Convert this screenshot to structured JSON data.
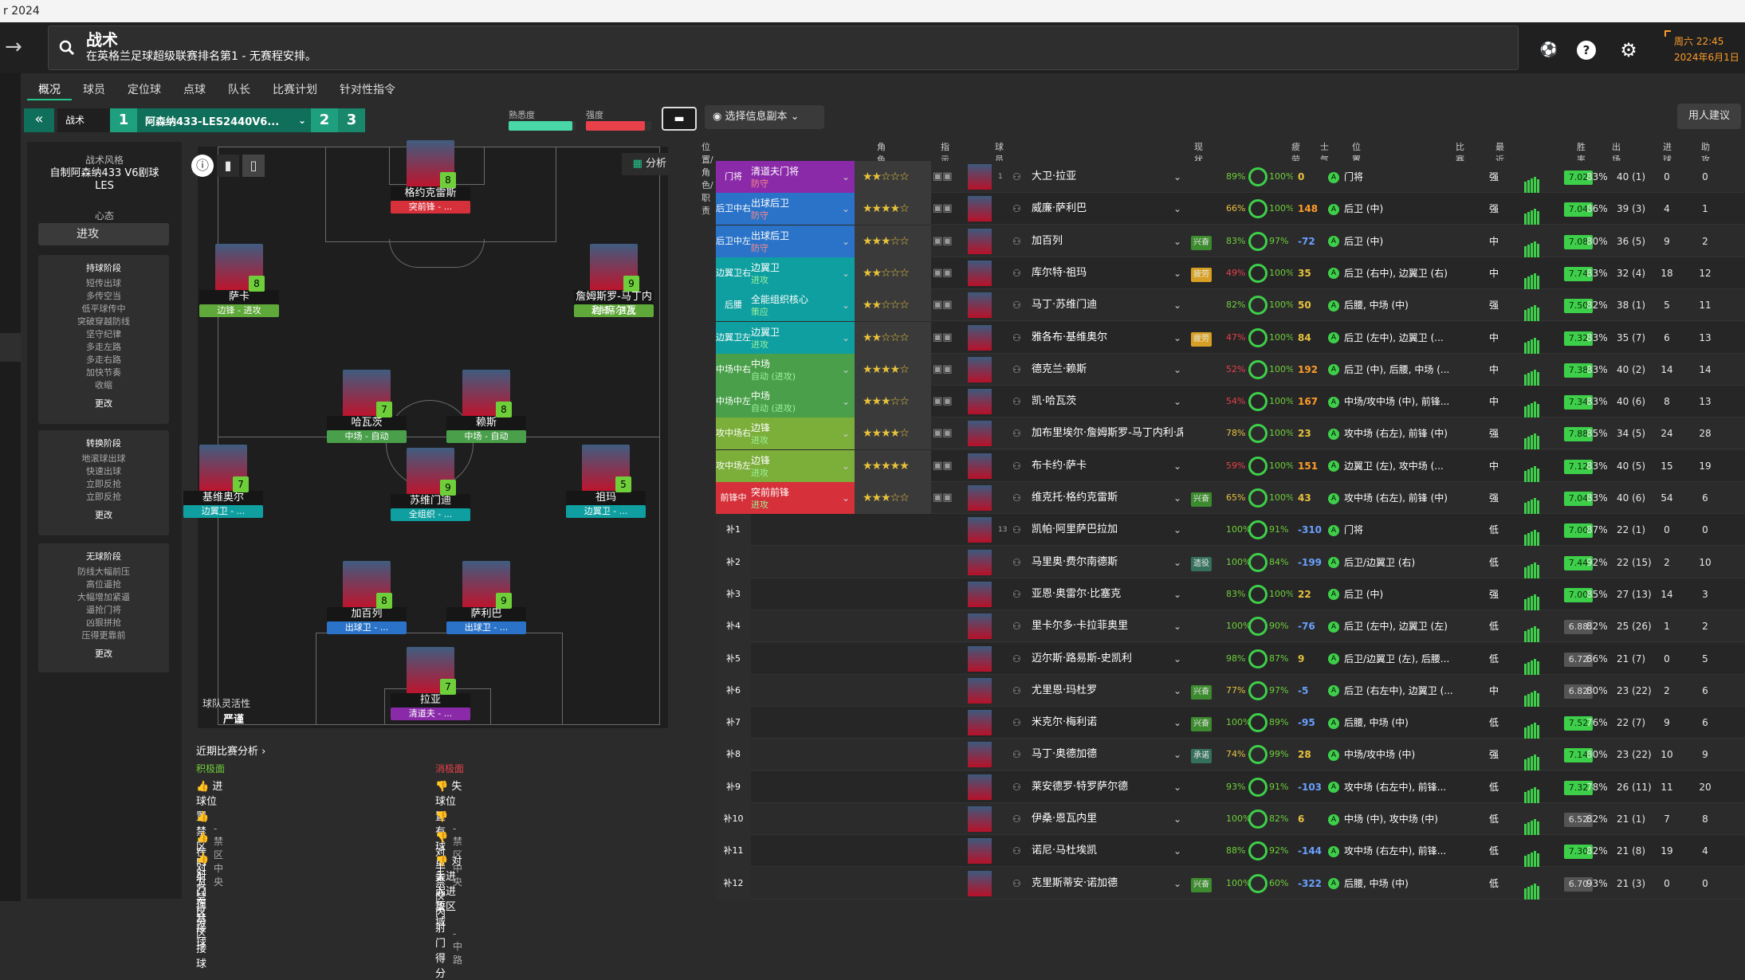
{
  "window_title": "r 2024",
  "header": {
    "title": "战术",
    "subtitle": "在英格兰足球超级联赛排名第1 - 无赛程安排。",
    "clock_time": "周六 22:45",
    "clock_date": "2024年6月1日"
  },
  "tabs": [
    "概况",
    "球员",
    "定位球",
    "点球",
    "队长",
    "比赛计划",
    "针对性指令"
  ],
  "tactic": {
    "label": "战术",
    "slot1": "1",
    "name": "阿森纳433-LES2440V6...",
    "slot2": "2",
    "slot3": "3",
    "familiarity_label": "熟悉度",
    "strength_label": "强度",
    "familiarity_level": 0.95,
    "strength_level": 0.9,
    "view_button": "选择信息副本",
    "advice_button": "用人建议",
    "analysis_button": "分析"
  },
  "left": {
    "style_label": "战术风格",
    "style_value": "自制阿森纳433 V6剧球LES",
    "mentality_label": "心态",
    "mentality_value": "进攻",
    "in_possession": {
      "title": "持球阶段",
      "items": [
        "短传出球",
        "多传空当",
        "低平球传中",
        "突破穿越防线",
        "坚守纪律",
        "多走左路",
        "多走右路",
        "加快节奏",
        "收缩"
      ],
      "more": "更改"
    },
    "transition": {
      "title": "转换阶段",
      "items": [
        "地滚球出球",
        "快速出球",
        "立即反抢",
        "立即反抢"
      ],
      "more": "更改"
    },
    "out_possession": {
      "title": "无球阶段",
      "items": [
        "防线大幅前压",
        "高位逼抢",
        "大幅增加紧逼",
        "逼抢门将",
        "凶狠拼抢",
        "压得更靠前"
      ],
      "more": "更改"
    }
  },
  "pitch": {
    "flex_label": "球队灵活性",
    "flex_value": "严谨",
    "players": [
      {
        "name": "格约克雷斯",
        "role": "突前锋 - ...",
        "num": "8",
        "rc": "#d6303a"
      },
      {
        "name": "萨卡",
        "role": "边锋 - 进攻",
        "num": "8",
        "rc": "#5fa83a"
      },
      {
        "name": "詹姆斯罗-马丁内利·席尔瓦",
        "role": "边锋 - 进攻",
        "num": "9",
        "rc": "#5fa83a"
      },
      {
        "name": "哈瓦茨",
        "role": "中场 - 自动",
        "num": "7",
        "rc": "#4aa04a"
      },
      {
        "name": "赖斯",
        "role": "中场 - 自动",
        "num": "8",
        "rc": "#4aa04a"
      },
      {
        "name": "苏维门迪",
        "role": "全组织 - ...",
        "num": "9",
        "rc": "#0f9fa0"
      },
      {
        "name": "基维奥尔",
        "role": "边翼卫 - ...",
        "num": "7",
        "rc": "#0f9fa0"
      },
      {
        "name": "祖玛",
        "role": "边翼卫 - ...",
        "num": "5",
        "rc": "#0f9fa0"
      },
      {
        "name": "加百列",
        "role": "出球卫 - ...",
        "num": "8",
        "rc": "#2a73c8"
      },
      {
        "name": "萨利巴",
        "role": "出球卫 - ...",
        "num": "9",
        "rc": "#2a73c8"
      },
      {
        "name": "拉亚",
        "role": "清道夫 - ...",
        "num": "7",
        "rc": "#8a2aa8"
      }
    ]
  },
  "recent": {
    "title": "近期比赛分析",
    "positive_label": "积极面",
    "negative_label": "消极面",
    "positives": [
      {
        "t": "进球位置",
        "s": "- 禁区中央"
      },
      {
        "t": "禁区内射门得分",
        "s": ""
      },
      {
        "t": "在对方禁区接球",
        "s": ""
      },
      {
        "t": "对方在禁区接球",
        "s": ""
      }
    ],
    "negatives": [
      {
        "t": "失球位置",
        "s": "- 禁区中央"
      },
      {
        "t": "有球员太弱势",
        "s": ""
      },
      {
        "t": "对手禁区内射门得分",
        "s": ""
      },
      {
        "t": "对手进入进攻区域",
        "s": "- 中路"
      }
    ]
  },
  "table": {
    "headers": [
      "位置/角色/职责",
      "角色能力",
      "指示",
      "球员",
      "现状",
      "疲劳...",
      "士气",
      "位置",
      "比赛负...",
      "最近5场比赛",
      "胜率",
      "出场",
      "进球",
      "助攻"
    ],
    "rows": [
      {
        "pos": "门将",
        "role": "清道夫门将",
        "duty": "防守",
        "pc": "#8a2aa8",
        "stars": "★★☆☆☆",
        "kit": "1",
        "name": "大卫·拉亚",
        "status": "",
        "fit": "89%",
        "cond": "100%",
        "val": "0",
        "loc": "门将",
        "str": "强",
        "rat": "7.02",
        "rc": "#3ecf4a",
        "pct": "83%",
        "app": "40 (1)",
        "g": "0",
        "a": "0"
      },
      {
        "pos": "后卫中右",
        "role": "出球后卫",
        "duty": "防守",
        "pc": "#2a73c8",
        "stars": "★★★★☆",
        "kit": "",
        "name": "威廉·萨利巴",
        "status": "",
        "fit": "66%",
        "cond": "100%",
        "val": "148",
        "loc": "后卫 (中)",
        "str": "强",
        "rat": "7.04",
        "rc": "#3ecf4a",
        "pct": "86%",
        "app": "39 (3)",
        "g": "4",
        "a": "1"
      },
      {
        "pos": "后卫中左",
        "role": "出球后卫",
        "duty": "防守",
        "pc": "#2a73c8",
        "stars": "★★★☆☆",
        "kit": "",
        "name": "加百列",
        "status": "兴奋",
        "fit": "83%",
        "cond": "97%",
        "val": "-72",
        "loc": "后卫 (中)",
        "str": "中",
        "rat": "7.08",
        "rc": "#3ecf4a",
        "pct": "80%",
        "app": "36 (5)",
        "g": "9",
        "a": "2"
      },
      {
        "pos": "边翼卫右",
        "role": "边翼卫",
        "duty": "进攻",
        "pc": "#0f9fa0",
        "stars": "★★☆☆☆",
        "kit": "",
        "name": "库尔特·祖玛",
        "status": "疲劳",
        "fit": "49%",
        "cond": "100%",
        "val": "35",
        "loc": "后卫 (右中), 边翼卫 (右)",
        "str": "中",
        "rat": "7.74",
        "rc": "#3ecf4a",
        "pct": "83%",
        "app": "32 (4)",
        "g": "18",
        "a": "12"
      },
      {
        "pos": "后腰",
        "role": "全能组织核心",
        "duty": "策应",
        "pc": "#0f9fa0",
        "stars": "★★☆☆☆",
        "kit": "",
        "name": "马丁·苏维门迪",
        "status": "",
        "fit": "82%",
        "cond": "100%",
        "val": "50",
        "loc": "后腰, 中场 (中)",
        "str": "强",
        "rat": "7.50",
        "rc": "#3ecf4a",
        "pct": "82%",
        "app": "38 (1)",
        "g": "5",
        "a": "11"
      },
      {
        "pos": "边翼卫左",
        "role": "边翼卫",
        "duty": "进攻",
        "pc": "#0f9fa0",
        "stars": "★★☆☆☆",
        "kit": "",
        "name": "雅各布·基维奥尔",
        "status": "疲劳",
        "fit": "47%",
        "cond": "100%",
        "val": "84",
        "loc": "后卫 (左中), 边翼卫 (...",
        "str": "中",
        "rat": "7.32",
        "rc": "#3ecf4a",
        "pct": "83%",
        "app": "35 (7)",
        "g": "6",
        "a": "13"
      },
      {
        "pos": "中场中右",
        "role": "中场",
        "duty": "自动 (进攻)",
        "pc": "#4aa04a",
        "stars": "★★★★☆",
        "kit": "",
        "name": "德克兰·赖斯",
        "status": "",
        "fit": "52%",
        "cond": "100%",
        "val": "192",
        "loc": "后卫 (中), 后腰, 中场 (...",
        "str": "中",
        "rat": "7.38",
        "rc": "#3ecf4a",
        "pct": "83%",
        "app": "40 (2)",
        "g": "14",
        "a": "14"
      },
      {
        "pos": "中场中左",
        "role": "中场",
        "duty": "自动 (进攻)",
        "pc": "#4aa04a",
        "stars": "★★★☆☆",
        "kit": "",
        "name": "凯·哈瓦茨",
        "status": "",
        "fit": "54%",
        "cond": "100%",
        "val": "167",
        "loc": "中场/攻中场 (中), 前锋...",
        "str": "中",
        "rat": "7.34",
        "rc": "#3ecf4a",
        "pct": "83%",
        "app": "40 (6)",
        "g": "8",
        "a": "13"
      },
      {
        "pos": "攻中场右",
        "role": "边锋",
        "duty": "进攻",
        "pc": "#7cae3a",
        "stars": "★★★★☆",
        "kit": "",
        "name": "加布里埃尔·詹姆斯罗-马丁内利·席尔瓦",
        "status": "",
        "fit": "78%",
        "cond": "100%",
        "val": "23",
        "loc": "攻中场 (右左), 前锋 (中)",
        "str": "强",
        "rat": "7.88",
        "rc": "#3ecf4a",
        "pct": "85%",
        "app": "34 (5)",
        "g": "24",
        "a": "28"
      },
      {
        "pos": "攻中场左",
        "role": "边锋",
        "duty": "进攻",
        "pc": "#7cae3a",
        "stars": "★★★★★",
        "kit": "",
        "name": "布卡约·萨卡",
        "status": "",
        "fit": "59%",
        "cond": "100%",
        "val": "151",
        "loc": "边翼卫 (左), 攻中场 (...",
        "str": "中",
        "rat": "7.12",
        "rc": "#3ecf4a",
        "pct": "83%",
        "app": "40 (5)",
        "g": "15",
        "a": "19"
      },
      {
        "pos": "前锋中",
        "role": "突前前锋",
        "duty": "进攻",
        "pc": "#d6303a",
        "stars": "★★★☆☆",
        "kit": "",
        "name": "维克托·格约克雷斯",
        "status": "兴奋",
        "fit": "65%",
        "cond": "100%",
        "val": "43",
        "loc": "攻中场 (右左), 前锋 (中)",
        "str": "强",
        "rat": "7.04",
        "rc": "#3ecf4a",
        "pct": "83%",
        "app": "40 (6)",
        "g": "54",
        "a": "6"
      },
      {
        "pos": "补1",
        "role": "",
        "duty": "",
        "pc": "",
        "stars": "",
        "kit": "13",
        "name": "凯帕·阿里萨巴拉加",
        "status": "",
        "fit": "100%",
        "cond": "91%",
        "val": "-310",
        "loc": "门将",
        "str": "低",
        "rat": "7.00",
        "rc": "#3ecf4a",
        "pct": "87%",
        "app": "22 (1)",
        "g": "0",
        "a": "0"
      },
      {
        "pos": "补2",
        "role": "",
        "duty": "",
        "pc": "",
        "stars": "",
        "kit": "",
        "name": "马里奥·费尔南德斯",
        "status": "遗役",
        "fit": "100%",
        "cond": "84%",
        "val": "-199",
        "loc": "后卫/边翼卫 (右)",
        "str": "低",
        "rat": "7.44",
        "rc": "#3ecf4a",
        "pct": "92%",
        "app": "22 (15)",
        "g": "2",
        "a": "10"
      },
      {
        "pos": "补3",
        "role": "",
        "duty": "",
        "pc": "",
        "stars": "",
        "kit": "",
        "name": "亚恩·奥雷尔·比塞克",
        "status": "",
        "fit": "83%",
        "cond": "100%",
        "val": "22",
        "loc": "后卫 (中)",
        "str": "强",
        "rat": "7.00",
        "rc": "#3ecf4a",
        "pct": "85%",
        "app": "27 (13)",
        "g": "14",
        "a": "3"
      },
      {
        "pos": "补4",
        "role": "",
        "duty": "",
        "pc": "",
        "stars": "",
        "kit": "",
        "name": "里卡尔多·卡拉菲奥里",
        "status": "",
        "fit": "100%",
        "cond": "90%",
        "val": "-76",
        "loc": "后卫 (左中), 边翼卫 (左)",
        "str": "低",
        "rat": "6.88",
        "rc": "#555",
        "pct": "82%",
        "app": "25 (26)",
        "g": "1",
        "a": "2"
      },
      {
        "pos": "补5",
        "role": "",
        "duty": "",
        "pc": "",
        "stars": "",
        "kit": "",
        "name": "迈尔斯·路易斯-史凯利",
        "status": "",
        "fit": "98%",
        "cond": "87%",
        "val": "9",
        "loc": "后卫/边翼卫 (左), 后腰...",
        "str": "低",
        "rat": "6.72",
        "rc": "#555",
        "pct": "86%",
        "app": "21 (7)",
        "g": "0",
        "a": "5"
      },
      {
        "pos": "补6",
        "role": "",
        "duty": "",
        "pc": "",
        "stars": "",
        "kit": "",
        "name": "尤里恩·玛杜罗",
        "status": "兴奋",
        "fit": "77%",
        "cond": "97%",
        "val": "-5",
        "loc": "后卫 (右左中), 边翼卫 (...",
        "str": "中",
        "rat": "6.82",
        "rc": "#555",
        "pct": "80%",
        "app": "23 (22)",
        "g": "2",
        "a": "6"
      },
      {
        "pos": "补7",
        "role": "",
        "duty": "",
        "pc": "",
        "stars": "",
        "kit": "",
        "name": "米克尔·梅利诺",
        "status": "兴奋",
        "fit": "100%",
        "cond": "89%",
        "val": "-95",
        "loc": "后腰, 中场 (中)",
        "str": "低",
        "rat": "7.52",
        "rc": "#3ecf4a",
        "pct": "76%",
        "app": "22 (7)",
        "g": "9",
        "a": "6"
      },
      {
        "pos": "补8",
        "role": "",
        "duty": "",
        "pc": "",
        "stars": "",
        "kit": "",
        "name": "马丁·奥德加德",
        "status": "承诺",
        "fit": "74%",
        "cond": "99%",
        "val": "28",
        "loc": "中场/攻中场 (中)",
        "str": "强",
        "rat": "7.14",
        "rc": "#3ecf4a",
        "pct": "80%",
        "app": "23 (22)",
        "g": "10",
        "a": "9"
      },
      {
        "pos": "补9",
        "role": "",
        "duty": "",
        "pc": "",
        "stars": "",
        "kit": "",
        "name": "莱安德罗·特罗萨尔德",
        "status": "",
        "fit": "93%",
        "cond": "91%",
        "val": "-103",
        "loc": "攻中场 (右左中), 前锋...",
        "str": "低",
        "rat": "7.32",
        "rc": "#3ecf4a",
        "pct": "78%",
        "app": "26 (11)",
        "g": "11",
        "a": "20"
      },
      {
        "pos": "补10",
        "role": "",
        "duty": "",
        "pc": "",
        "stars": "",
        "kit": "",
        "name": "伊桑·恩瓦内里",
        "status": "",
        "fit": "100%",
        "cond": "82%",
        "val": "6",
        "loc": "中场 (中), 攻中场 (中)",
        "str": "低",
        "rat": "6.52",
        "rc": "#555",
        "pct": "82%",
        "app": "21 (1)",
        "g": "7",
        "a": "8"
      },
      {
        "pos": "补11",
        "role": "",
        "duty": "",
        "pc": "",
        "stars": "",
        "kit": "",
        "name": "诺尼·马杜埃凯",
        "status": "",
        "fit": "88%",
        "cond": "92%",
        "val": "-144",
        "loc": "攻中场 (右左中), 前锋...",
        "str": "低",
        "rat": "7.30",
        "rc": "#3ecf4a",
        "pct": "82%",
        "app": "21 (8)",
        "g": "19",
        "a": "4"
      },
      {
        "pos": "补12",
        "role": "",
        "duty": "",
        "pc": "",
        "stars": "",
        "kit": "",
        "name": "克里斯蒂安·诺加德",
        "status": "兴奋",
        "fit": "100%",
        "cond": "60%",
        "val": "-322",
        "loc": "后腰, 中场 (中)",
        "str": "低",
        "rat": "6.70",
        "rc": "#555",
        "pct": "93%",
        "app": "21 (3)",
        "g": "0",
        "a": "0"
      }
    ]
  },
  "colors": {
    "accent": "#23c48a",
    "clock": "#ff9c2a"
  }
}
